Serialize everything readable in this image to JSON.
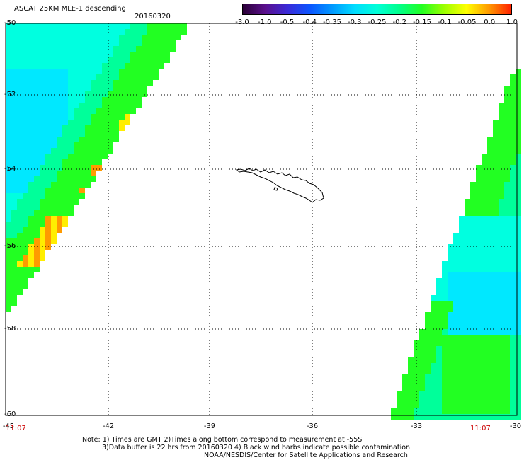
{
  "header": {
    "title": "ASCAT 25KM MLE-1 descending",
    "date": "20160320"
  },
  "colorbar": {
    "tick_labels": [
      "-3.0",
      "-1.0",
      "-0.5",
      "-0.4",
      "-0.35",
      "-0.3",
      "-0.25",
      "-0.2",
      "-0.15",
      "-0.1",
      "-0.05",
      "0.0",
      "1.0"
    ],
    "colors": [
      "#2a0036",
      "#5a0f8c",
      "#3a2ad8",
      "#0b55ff",
      "#0099ff",
      "#00dcff",
      "#00ffd8",
      "#00ff8a",
      "#22ff22",
      "#9cff00",
      "#ffff00",
      "#ff9a00",
      "#ff2000"
    ]
  },
  "axes": {
    "lat_labels": [
      "-50",
      "-52",
      "-54",
      "-56",
      "-58",
      "-60"
    ],
    "lon_labels": [
      "-45",
      "-42",
      "-39",
      "-36",
      "-33",
      "-30"
    ],
    "lat_range": [
      -60,
      -50
    ],
    "lon_range": [
      -45,
      -30
    ]
  },
  "swath_times": {
    "left": "11:07",
    "right": "11:07"
  },
  "notes": {
    "line1": "Note: 1) Times are GMT 2)Times along bottom correspond to measurement at -55S",
    "line2": "3)Data buffer is 22 hrs from 20160320 4) Black wind barbs indicate possible contamination",
    "line3": "NOAA/NESDIS/Center for Satellite Applications and Research"
  },
  "swath_colors": {
    "cyan": "#00ffe0",
    "light_cyan": "#00e8ff",
    "green_cyan": "#00ff9a",
    "green": "#22ff22",
    "yellow": "#ffee00",
    "orange": "#ff9a00",
    "blue": "#0b70ff"
  }
}
